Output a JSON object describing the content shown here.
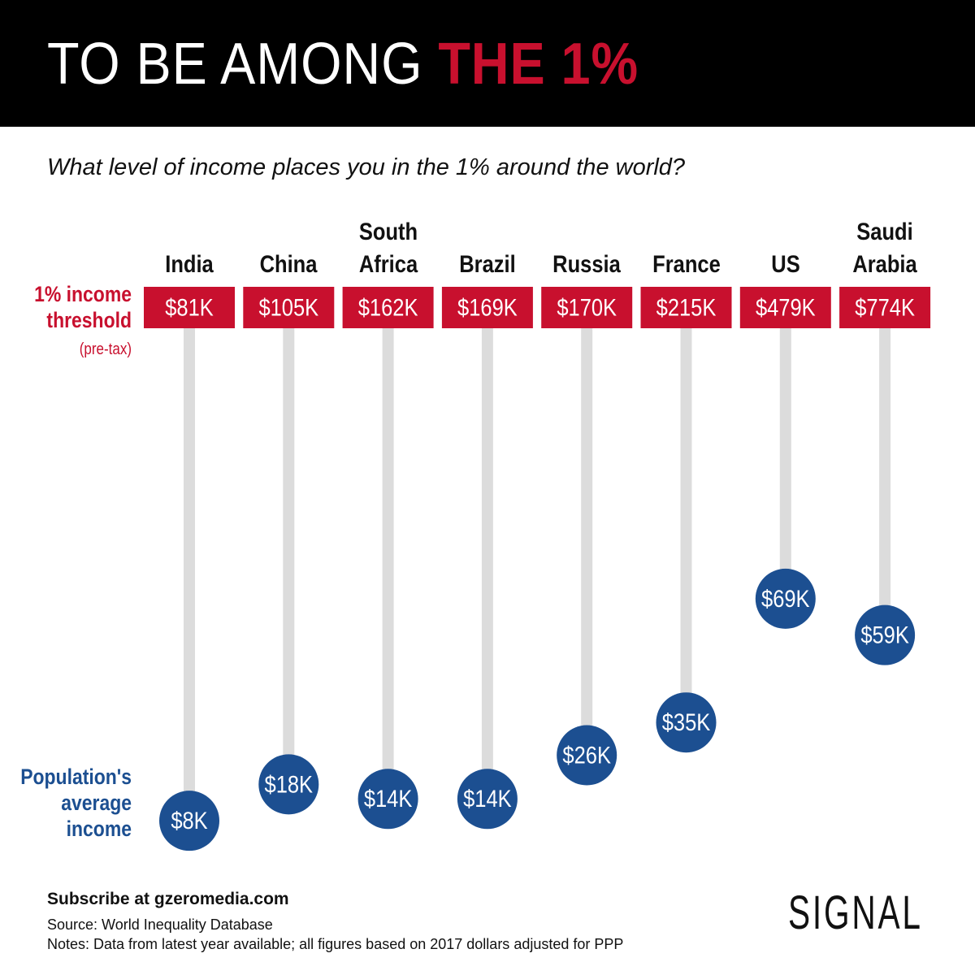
{
  "title": "TO BE AMONG",
  "title_highlight": "THE 1%",
  "subtitle": "What level of income places you in the 1% around the world?",
  "chart_data": {
    "type": "dumbbell",
    "categories": [
      "India",
      "China",
      "South Africa",
      "Brazil",
      "Russia",
      "France",
      "US",
      "Saudi Arabia"
    ],
    "ylim": [
      0,
      80000
    ],
    "series": [
      {
        "name": "1% income threshold",
        "note": "(pre-tax)",
        "color": "#c8102e",
        "values": [
          81000,
          105000,
          162000,
          169000,
          170000,
          215000,
          479000,
          774000
        ],
        "value_labels": [
          "$81K",
          "$105K",
          "$162K",
          "$169K",
          "$170K",
          "$215K",
          "$479K",
          "$774K"
        ]
      },
      {
        "name": "Population's average income",
        "color": "#1c4f91",
        "values": [
          8000,
          18000,
          14000,
          14000,
          26000,
          35000,
          69000,
          59000
        ],
        "value_labels": [
          "$8K",
          "$18K",
          "$14K",
          "$14K",
          "$26K",
          "$35K",
          "$69K",
          "$59K"
        ]
      }
    ]
  },
  "footer": {
    "subscribe": "Subscribe at gzeromedia.com",
    "source": "Source: World Inequality Database",
    "notes": "Notes: Data from latest year available; all figures based on 2017 dollars adjusted for PPP"
  },
  "logo": "SIGNAL"
}
